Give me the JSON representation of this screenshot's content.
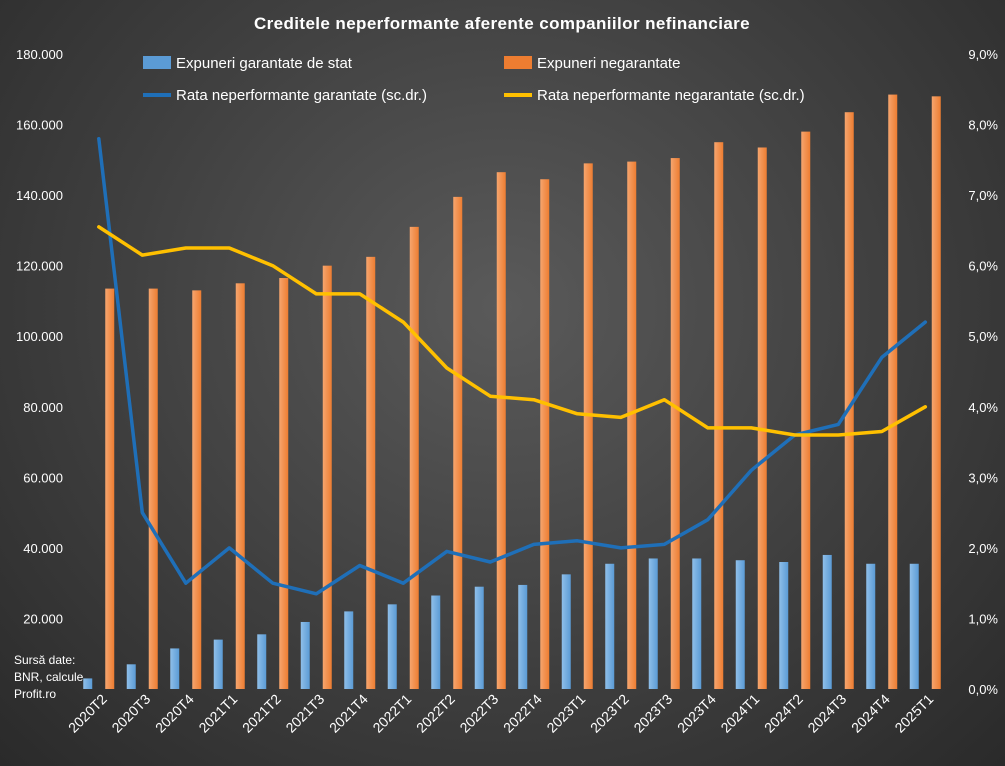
{
  "chart_data": {
    "type": "bar",
    "title": "Creditele neperformante aferente companiilor nefinanciare",
    "categories": [
      "2020T2",
      "2020T3",
      "2020T4",
      "2021T1",
      "2021T2",
      "2021T3",
      "2021T4",
      "2022T1",
      "2022T2",
      "2022T3",
      "2022T4",
      "2023T1",
      "2023T2",
      "2023T3",
      "2023T4",
      "2024T1",
      "2024T2",
      "2024T3",
      "2024T4",
      "2025T1"
    ],
    "series": [
      {
        "name": "Expuneri garantate de stat",
        "kind": "bar",
        "axis": "left",
        "color": "#5b9bd5",
        "values": [
          3000,
          7000,
          11500,
          14000,
          15500,
          19000,
          22000,
          24000,
          26500,
          29000,
          29500,
          32500,
          35500,
          37000,
          37000,
          36500,
          36000,
          38000,
          35500,
          35500
        ]
      },
      {
        "name": "Expuneri negarantate",
        "kind": "bar",
        "axis": "left",
        "color": "#ed7d31",
        "values": [
          113500,
          113500,
          113000,
          115000,
          116500,
          120000,
          122500,
          131000,
          139500,
          146500,
          144500,
          149000,
          149500,
          150500,
          155000,
          153500,
          158000,
          163500,
          168500,
          168000
        ]
      },
      {
        "name": "Rata neperformante garantate (sc.dr.)",
        "kind": "line",
        "axis": "right",
        "color": "#1f6fb8",
        "values": [
          7.8,
          2.5,
          1.5,
          2.0,
          1.5,
          1.35,
          1.75,
          1.5,
          1.95,
          1.8,
          2.05,
          2.1,
          2.0,
          2.05,
          2.4,
          3.1,
          3.6,
          3.75,
          4.7,
          5.2
        ]
      },
      {
        "name": "Rata neperformante negarantate (sc.dr.)",
        "kind": "line",
        "axis": "right",
        "color": "#ffc000",
        "values": [
          6.55,
          6.15,
          6.25,
          6.25,
          6.0,
          5.6,
          5.6,
          5.2,
          4.55,
          4.15,
          4.1,
          3.9,
          3.85,
          4.1,
          3.7,
          3.7,
          3.6,
          3.6,
          3.65,
          4.0
        ]
      }
    ],
    "ylim_left": [
      0,
      180000
    ],
    "yticks_left": [
      "",
      "20.000",
      "40.000",
      "60.000",
      "80.000",
      "100.000",
      "120.000",
      "140.000",
      "160.000",
      "180.000"
    ],
    "ylim_right": [
      0,
      9
    ],
    "yticks_right": [
      "0,0%",
      "1,0%",
      "2,0%",
      "3,0%",
      "4,0%",
      "5,0%",
      "6,0%",
      "7,0%",
      "8,0%",
      "9,0%"
    ],
    "legend_position": "top",
    "grid": false
  },
  "source_note": [
    "Sursă date:",
    "BNR, calcule",
    "Profit.ro"
  ]
}
